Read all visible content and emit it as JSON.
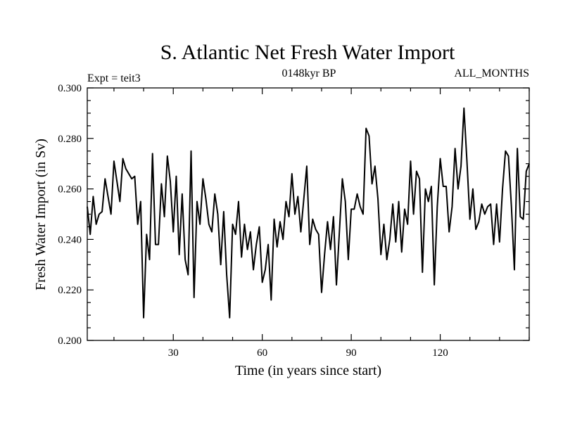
{
  "chart_data": {
    "type": "line",
    "title": "S. Atlantic Net Fresh Water Import",
    "subtitle_left": "Expt = teit3",
    "subtitle_center": "0148kyr BP",
    "subtitle_right": "ALL_MONTHS",
    "xlabel": "Time (in years since start)",
    "ylabel": "Fresh Water Import (in Sv)",
    "xlim": [
      1,
      150
    ],
    "ylim": [
      0.2,
      0.3
    ],
    "xticks": [
      30,
      60,
      90,
      120
    ],
    "xtick_labels": [
      "30",
      "60",
      "90",
      "120"
    ],
    "yticks": [
      0.2,
      0.22,
      0.24,
      0.26,
      0.28,
      0.3
    ],
    "ytick_labels": [
      "0.200",
      "0.220",
      "0.240",
      "0.260",
      "0.280",
      "0.300"
    ],
    "series": [
      {
        "name": "Fresh Water Import",
        "x": [
          1,
          2,
          3,
          4,
          5,
          6,
          7,
          8,
          9,
          10,
          11,
          12,
          13,
          14,
          15,
          16,
          17,
          18,
          19,
          20,
          21,
          22,
          23,
          24,
          25,
          26,
          27,
          28,
          29,
          30,
          31,
          32,
          33,
          34,
          35,
          36,
          37,
          38,
          39,
          40,
          41,
          42,
          43,
          44,
          45,
          46,
          47,
          48,
          49,
          50,
          51,
          52,
          53,
          54,
          55,
          56,
          57,
          58,
          59,
          60,
          61,
          62,
          63,
          64,
          65,
          66,
          67,
          68,
          69,
          70,
          71,
          72,
          73,
          74,
          75,
          76,
          77,
          78,
          79,
          80,
          81,
          82,
          83,
          84,
          85,
          86,
          87,
          88,
          89,
          90,
          91,
          92,
          93,
          94,
          95,
          96,
          97,
          98,
          99,
          100,
          101,
          102,
          103,
          104,
          105,
          106,
          107,
          108,
          109,
          110,
          111,
          112,
          113,
          114,
          115,
          116,
          117,
          118,
          119,
          120,
          121,
          122,
          123,
          124,
          125,
          126,
          127,
          128,
          129,
          130,
          131,
          132,
          133,
          134,
          135,
          136,
          137,
          138,
          139,
          140,
          141,
          142,
          143,
          144,
          145,
          146,
          147,
          148,
          149,
          150
        ],
        "values": [
          0.253,
          0.242,
          0.257,
          0.246,
          0.25,
          0.251,
          0.264,
          0.257,
          0.25,
          0.271,
          0.263,
          0.255,
          0.272,
          0.268,
          0.266,
          0.264,
          0.265,
          0.246,
          0.255,
          0.209,
          0.242,
          0.232,
          0.274,
          0.238,
          0.238,
          0.262,
          0.249,
          0.273,
          0.263,
          0.243,
          0.265,
          0.234,
          0.258,
          0.232,
          0.226,
          0.275,
          0.217,
          0.255,
          0.246,
          0.264,
          0.256,
          0.246,
          0.243,
          0.258,
          0.25,
          0.23,
          0.251,
          0.226,
          0.209,
          0.246,
          0.242,
          0.255,
          0.233,
          0.246,
          0.236,
          0.243,
          0.228,
          0.238,
          0.245,
          0.223,
          0.228,
          0.238,
          0.216,
          0.248,
          0.237,
          0.247,
          0.24,
          0.255,
          0.249,
          0.266,
          0.25,
          0.257,
          0.243,
          0.256,
          0.269,
          0.238,
          0.248,
          0.244,
          0.242,
          0.219,
          0.234,
          0.247,
          0.236,
          0.249,
          0.222,
          0.243,
          0.264,
          0.255,
          0.232,
          0.252,
          0.252,
          0.258,
          0.253,
          0.25,
          0.284,
          0.281,
          0.262,
          0.269,
          0.256,
          0.234,
          0.246,
          0.232,
          0.24,
          0.254,
          0.239,
          0.255,
          0.235,
          0.252,
          0.246,
          0.271,
          0.25,
          0.267,
          0.264,
          0.227,
          0.26,
          0.255,
          0.261,
          0.222,
          0.253,
          0.272,
          0.261,
          0.261,
          0.243,
          0.253,
          0.276,
          0.26,
          0.269,
          0.292,
          0.271,
          0.248,
          0.26,
          0.244,
          0.247,
          0.254,
          0.25,
          0.253,
          0.254,
          0.238,
          0.254,
          0.239,
          0.26,
          0.275,
          0.273,
          0.253,
          0.228,
          0.276,
          0.249,
          0.248,
          0.267,
          0.27
        ]
      }
    ]
  }
}
